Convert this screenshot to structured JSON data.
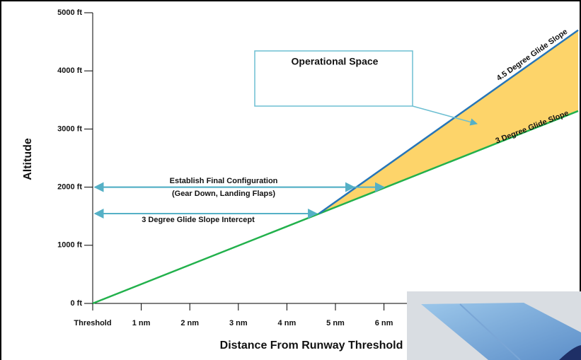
{
  "chart_data": {
    "type": "line",
    "y_label": "Altitude",
    "x_label": "Distance From Runway Threshold",
    "xlim": [
      0,
      10
    ],
    "ylim": [
      0,
      5000
    ],
    "xticks": [
      {
        "value": 0,
        "label": "Threshold"
      },
      {
        "value": 1,
        "label": "1 nm"
      },
      {
        "value": 2,
        "label": "2 nm"
      },
      {
        "value": 3,
        "label": "3 nm"
      },
      {
        "value": 4,
        "label": "4 nm"
      },
      {
        "value": 5,
        "label": "5 nm"
      },
      {
        "value": 6,
        "label": "6 nm"
      }
    ],
    "yticks": [
      {
        "value": 0,
        "label": "0 ft"
      },
      {
        "value": 1000,
        "label": "1000 ft"
      },
      {
        "value": 2000,
        "label": "2000 ft"
      },
      {
        "value": 3000,
        "label": "3000 ft"
      },
      {
        "value": 4000,
        "label": "4000 ft"
      },
      {
        "value": 5000,
        "label": "5000 ft"
      }
    ],
    "series": [
      {
        "name": "3 Degree Glide Slope",
        "color": "#22b14c",
        "x": [
          0,
          10
        ],
        "values": [
          0,
          3310
        ]
      },
      {
        "name": "4.5 Degree Glide Slope",
        "color": "#2776b8",
        "x": [
          4.66,
          10
        ],
        "values": [
          1545,
          4700
        ]
      }
    ],
    "fill_color": "#fdd46a",
    "annotations": {
      "operational_space": "Operational Space",
      "final_configuration": [
        "Establish Final Configuration",
        "(Gear Down, Landing Flaps)"
      ],
      "intercept": "3 Degree Glide Slope Intercept"
    }
  }
}
